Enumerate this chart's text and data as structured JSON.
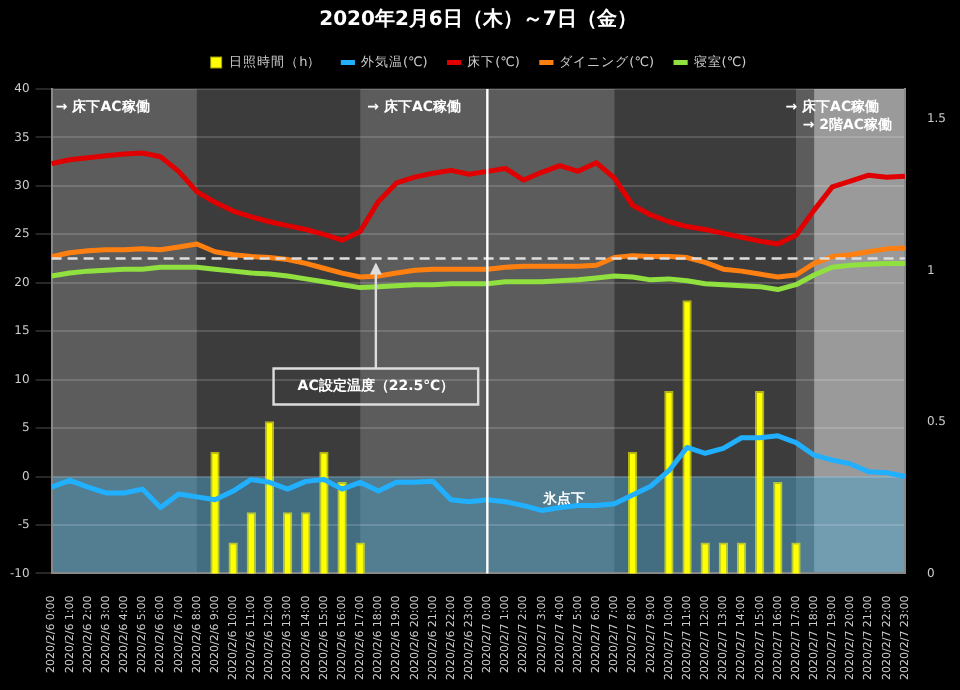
{
  "chart_data": {
    "type": "line",
    "title": "2020年2月6日（木）～7日（金）",
    "categories": [
      "2020/2/6 0:00",
      "2020/2/6 1:00",
      "2020/2/6 2:00",
      "2020/2/6 3:00",
      "2020/2/6 4:00",
      "2020/2/6 5:00",
      "2020/2/6 6:00",
      "2020/2/6 7:00",
      "2020/2/6 8:00",
      "2020/2/6 9:00",
      "2020/2/6 10:00",
      "2020/2/6 11:00",
      "2020/2/6 12:00",
      "2020/2/6 13:00",
      "2020/2/6 14:00",
      "2020/2/6 15:00",
      "2020/2/6 16:00",
      "2020/2/6 17:00",
      "2020/2/6 18:00",
      "2020/2/6 19:00",
      "2020/2/6 20:00",
      "2020/2/6 21:00",
      "2020/2/6 22:00",
      "2020/2/6 23:00",
      "2020/2/7 0:00",
      "2020/2/7 1:00",
      "2020/2/7 2:00",
      "2020/2/7 3:00",
      "2020/2/7 4:00",
      "2020/2/7 5:00",
      "2020/2/7 6:00",
      "2020/2/7 7:00",
      "2020/2/7 8:00",
      "2020/2/7 9:00",
      "2020/2/7 10:00",
      "2020/2/7 11:00",
      "2020/2/7 12:00",
      "2020/2/7 13:00",
      "2020/2/7 14:00",
      "2020/2/7 15:00",
      "2020/2/7 16:00",
      "2020/2/7 17:00",
      "2020/2/7 18:00",
      "2020/2/7 19:00",
      "2020/2/7 20:00",
      "2020/2/7 21:00",
      "2020/2/7 22:00",
      "2020/2/7 23:00"
    ],
    "series": [
      {
        "name": "日照時間（h）",
        "type": "bar",
        "axis": "y2",
        "color": "#ffff00",
        "values": [
          null,
          null,
          null,
          null,
          null,
          null,
          null,
          null,
          null,
          0.4,
          0.1,
          0.2,
          0.5,
          0.2,
          0.2,
          0.4,
          0.3,
          0.1,
          null,
          null,
          null,
          null,
          null,
          null,
          null,
          null,
          null,
          null,
          null,
          null,
          null,
          null,
          0.4,
          null,
          0.6,
          0.9,
          0.1,
          0.1,
          0.1,
          0.6,
          0.3,
          0.1,
          null,
          null,
          null,
          null,
          null,
          null
        ]
      },
      {
        "name": "外気温(℃)",
        "color": "#20b0ff",
        "values": [
          -1.1,
          -0.4,
          -1.1,
          -1.7,
          -1.7,
          -1.3,
          -3.2,
          -1.8,
          -2.1,
          -2.4,
          -1.5,
          -0.3,
          -0.6,
          -1.3,
          -0.5,
          -0.3,
          -1.3,
          -0.6,
          -1.5,
          -0.6,
          -0.6,
          -0.5,
          -2.4,
          -2.6,
          -2.4,
          -2.6,
          -3.0,
          -3.5,
          -3.2,
          -3.0,
          -3.0,
          -2.8,
          -1.9,
          -1.0,
          0.6,
          3.0,
          2.4,
          2.9,
          4.0,
          4.0,
          4.2,
          3.5,
          2.2,
          1.7,
          1.3,
          0.5,
          0.4,
          0.0
        ]
      },
      {
        "name": "床下(℃)",
        "color": "#e00000",
        "values": [
          32.3,
          32.7,
          32.9,
          33.1,
          33.3,
          33.4,
          33.0,
          31.5,
          29.4,
          28.3,
          27.4,
          26.8,
          26.3,
          25.9,
          25.5,
          25.0,
          24.4,
          25.3,
          28.4,
          30.3,
          30.9,
          31.3,
          31.6,
          31.2,
          31.5,
          31.8,
          30.6,
          31.4,
          32.1,
          31.5,
          32.4,
          30.8,
          28.0,
          27.0,
          26.3,
          25.8,
          25.5,
          25.1,
          24.7,
          24.3,
          24.0,
          24.9,
          27.5,
          29.9,
          30.5,
          31.1,
          30.9,
          31.0
        ]
      },
      {
        "name": "ダイニング(℃)",
        "color": "#ff8010",
        "values": [
          22.7,
          23.1,
          23.3,
          23.4,
          23.4,
          23.5,
          23.4,
          23.7,
          24.0,
          23.2,
          22.9,
          22.7,
          22.6,
          22.4,
          22.0,
          21.5,
          21.0,
          20.6,
          20.7,
          21.0,
          21.3,
          21.4,
          21.4,
          21.4,
          21.4,
          21.6,
          21.7,
          21.7,
          21.7,
          21.7,
          21.8,
          22.6,
          22.8,
          22.7,
          22.7,
          22.6,
          22.1,
          21.4,
          21.2,
          20.9,
          20.6,
          20.8,
          22.0,
          22.7,
          22.9,
          23.2,
          23.5,
          23.6
        ]
      },
      {
        "name": "寝室(℃)",
        "color": "#90e040",
        "values": [
          20.7,
          21.0,
          21.2,
          21.3,
          21.4,
          21.4,
          21.6,
          21.6,
          21.6,
          21.4,
          21.2,
          21.0,
          20.9,
          20.7,
          20.4,
          20.1,
          19.8,
          19.5,
          19.6,
          19.7,
          19.8,
          19.8,
          19.9,
          19.9,
          19.9,
          20.1,
          20.1,
          20.1,
          20.2,
          20.3,
          20.5,
          20.7,
          20.6,
          20.3,
          20.4,
          20.2,
          19.9,
          19.8,
          19.7,
          19.6,
          19.3,
          19.8,
          20.8,
          21.6,
          21.8,
          21.9,
          22.0,
          22.0
        ]
      }
    ],
    "ylim": [
      -10,
      40
    ],
    "yticks": [
      -10,
      -5,
      0,
      5,
      10,
      15,
      20,
      25,
      30,
      35,
      40
    ],
    "y2lim": [
      0,
      1.6
    ],
    "y2ticks": [
      0,
      0.5,
      1,
      1.5
    ],
    "grid": "y",
    "legend": "top",
    "marker": "none",
    "line_style": "solid",
    "ref_lines": [
      {
        "axis": "y",
        "value": 22.5,
        "label": "AC設定温度（22.5℃）",
        "color": "#dddddd",
        "line_style": "dashed"
      },
      {
        "axis": "x",
        "value": "2020/2/7 0:00",
        "color": "#ffffff"
      }
    ],
    "bands": [
      {
        "axis": "x",
        "from": "2020/2/6 8:00",
        "to": "2020/2/6 17:00",
        "color": "#3c3c3c"
      },
      {
        "axis": "x",
        "from": "2020/2/7 7:00",
        "to": "2020/2/7 17:00",
        "color": "#3c3c3c"
      },
      {
        "axis": "x",
        "from": "2020/2/7 18:00",
        "to": "2020/2/7 23:00",
        "color": "#9a9a9a"
      },
      {
        "axis": "y",
        "from": -10,
        "to": 0,
        "label": "氷点下",
        "color": "#4aa0c8"
      }
    ],
    "annotations": [
      "→ 床下AC稼働",
      "→ 床下AC稼働",
      "→ 床下AC稼働",
      "→ 2階AC稼働"
    ]
  }
}
